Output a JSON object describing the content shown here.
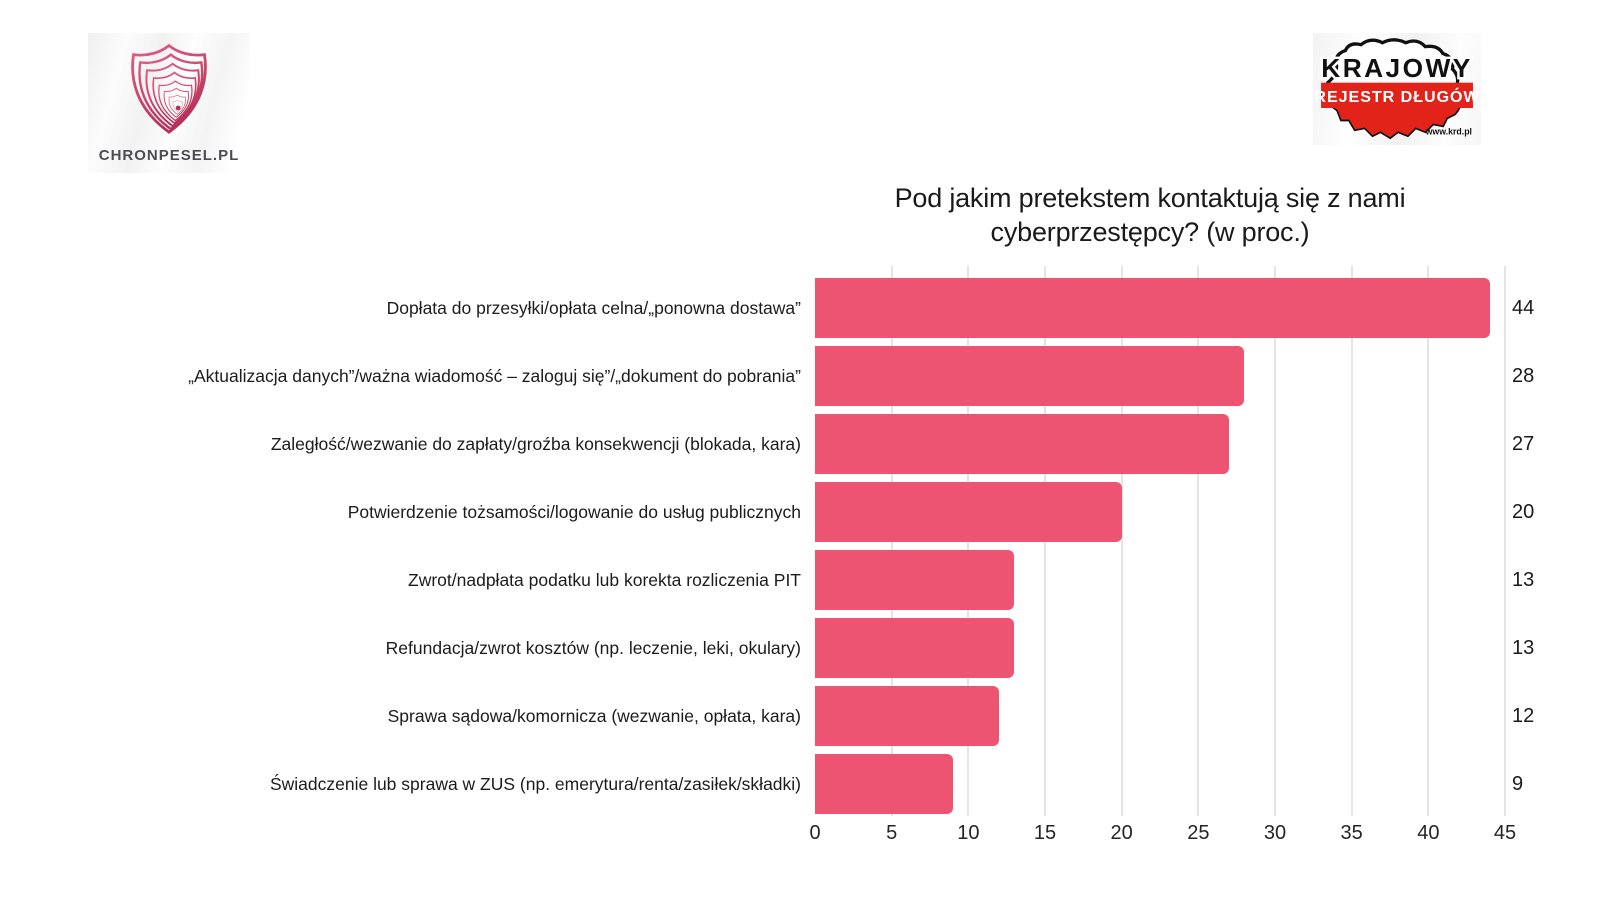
{
  "branding": {
    "chronpesel": {
      "name": "CHRONPESEL.PL",
      "accent_dark": "#b5315a",
      "accent_light": "#e06182"
    },
    "krd": {
      "line1": "KRAJOWY",
      "line2": "REJESTR DŁUGÓW",
      "url": "www.krd.pl",
      "red": "#e2231a"
    }
  },
  "chart_data": {
    "type": "bar",
    "orientation": "horizontal",
    "title_line1": "Pod jakim pretekstem kontaktują się z nami",
    "title_line2": "cyberprzestępcy? (w proc.)",
    "categories": [
      "Dopłata do przesyłki/opłata celna/„ponowna dostawa”",
      "„Aktualizacja danych”/ważna wiadomość – zaloguj się”/„dokument do pobrania”",
      "Zaległość/wezwanie do zapłaty/groźba konsekwencji (blokada, kara)",
      "Potwierdzenie tożsamości/logowanie do usług publicznych",
      "Zwrot/nadpłata podatku lub korekta rozliczenia PIT",
      "Refundacja/zwrot kosztów (np. leczenie, leki, okulary)",
      "Sprawa sądowa/komornicza (wezwanie, opłata, kara)",
      "Świadczenie lub sprawa w ZUS (np. emerytura/renta/zasiłek/składki)"
    ],
    "values": [
      44,
      28,
      27,
      20,
      13,
      13,
      12,
      9
    ],
    "xlim": [
      0,
      45
    ],
    "x_ticks": [
      0,
      5,
      10,
      15,
      20,
      25,
      30,
      35,
      40,
      45
    ],
    "bar_color": "#ec5471",
    "grid": true,
    "gridline_color": "#e4e4e4",
    "legend_position": "none"
  }
}
